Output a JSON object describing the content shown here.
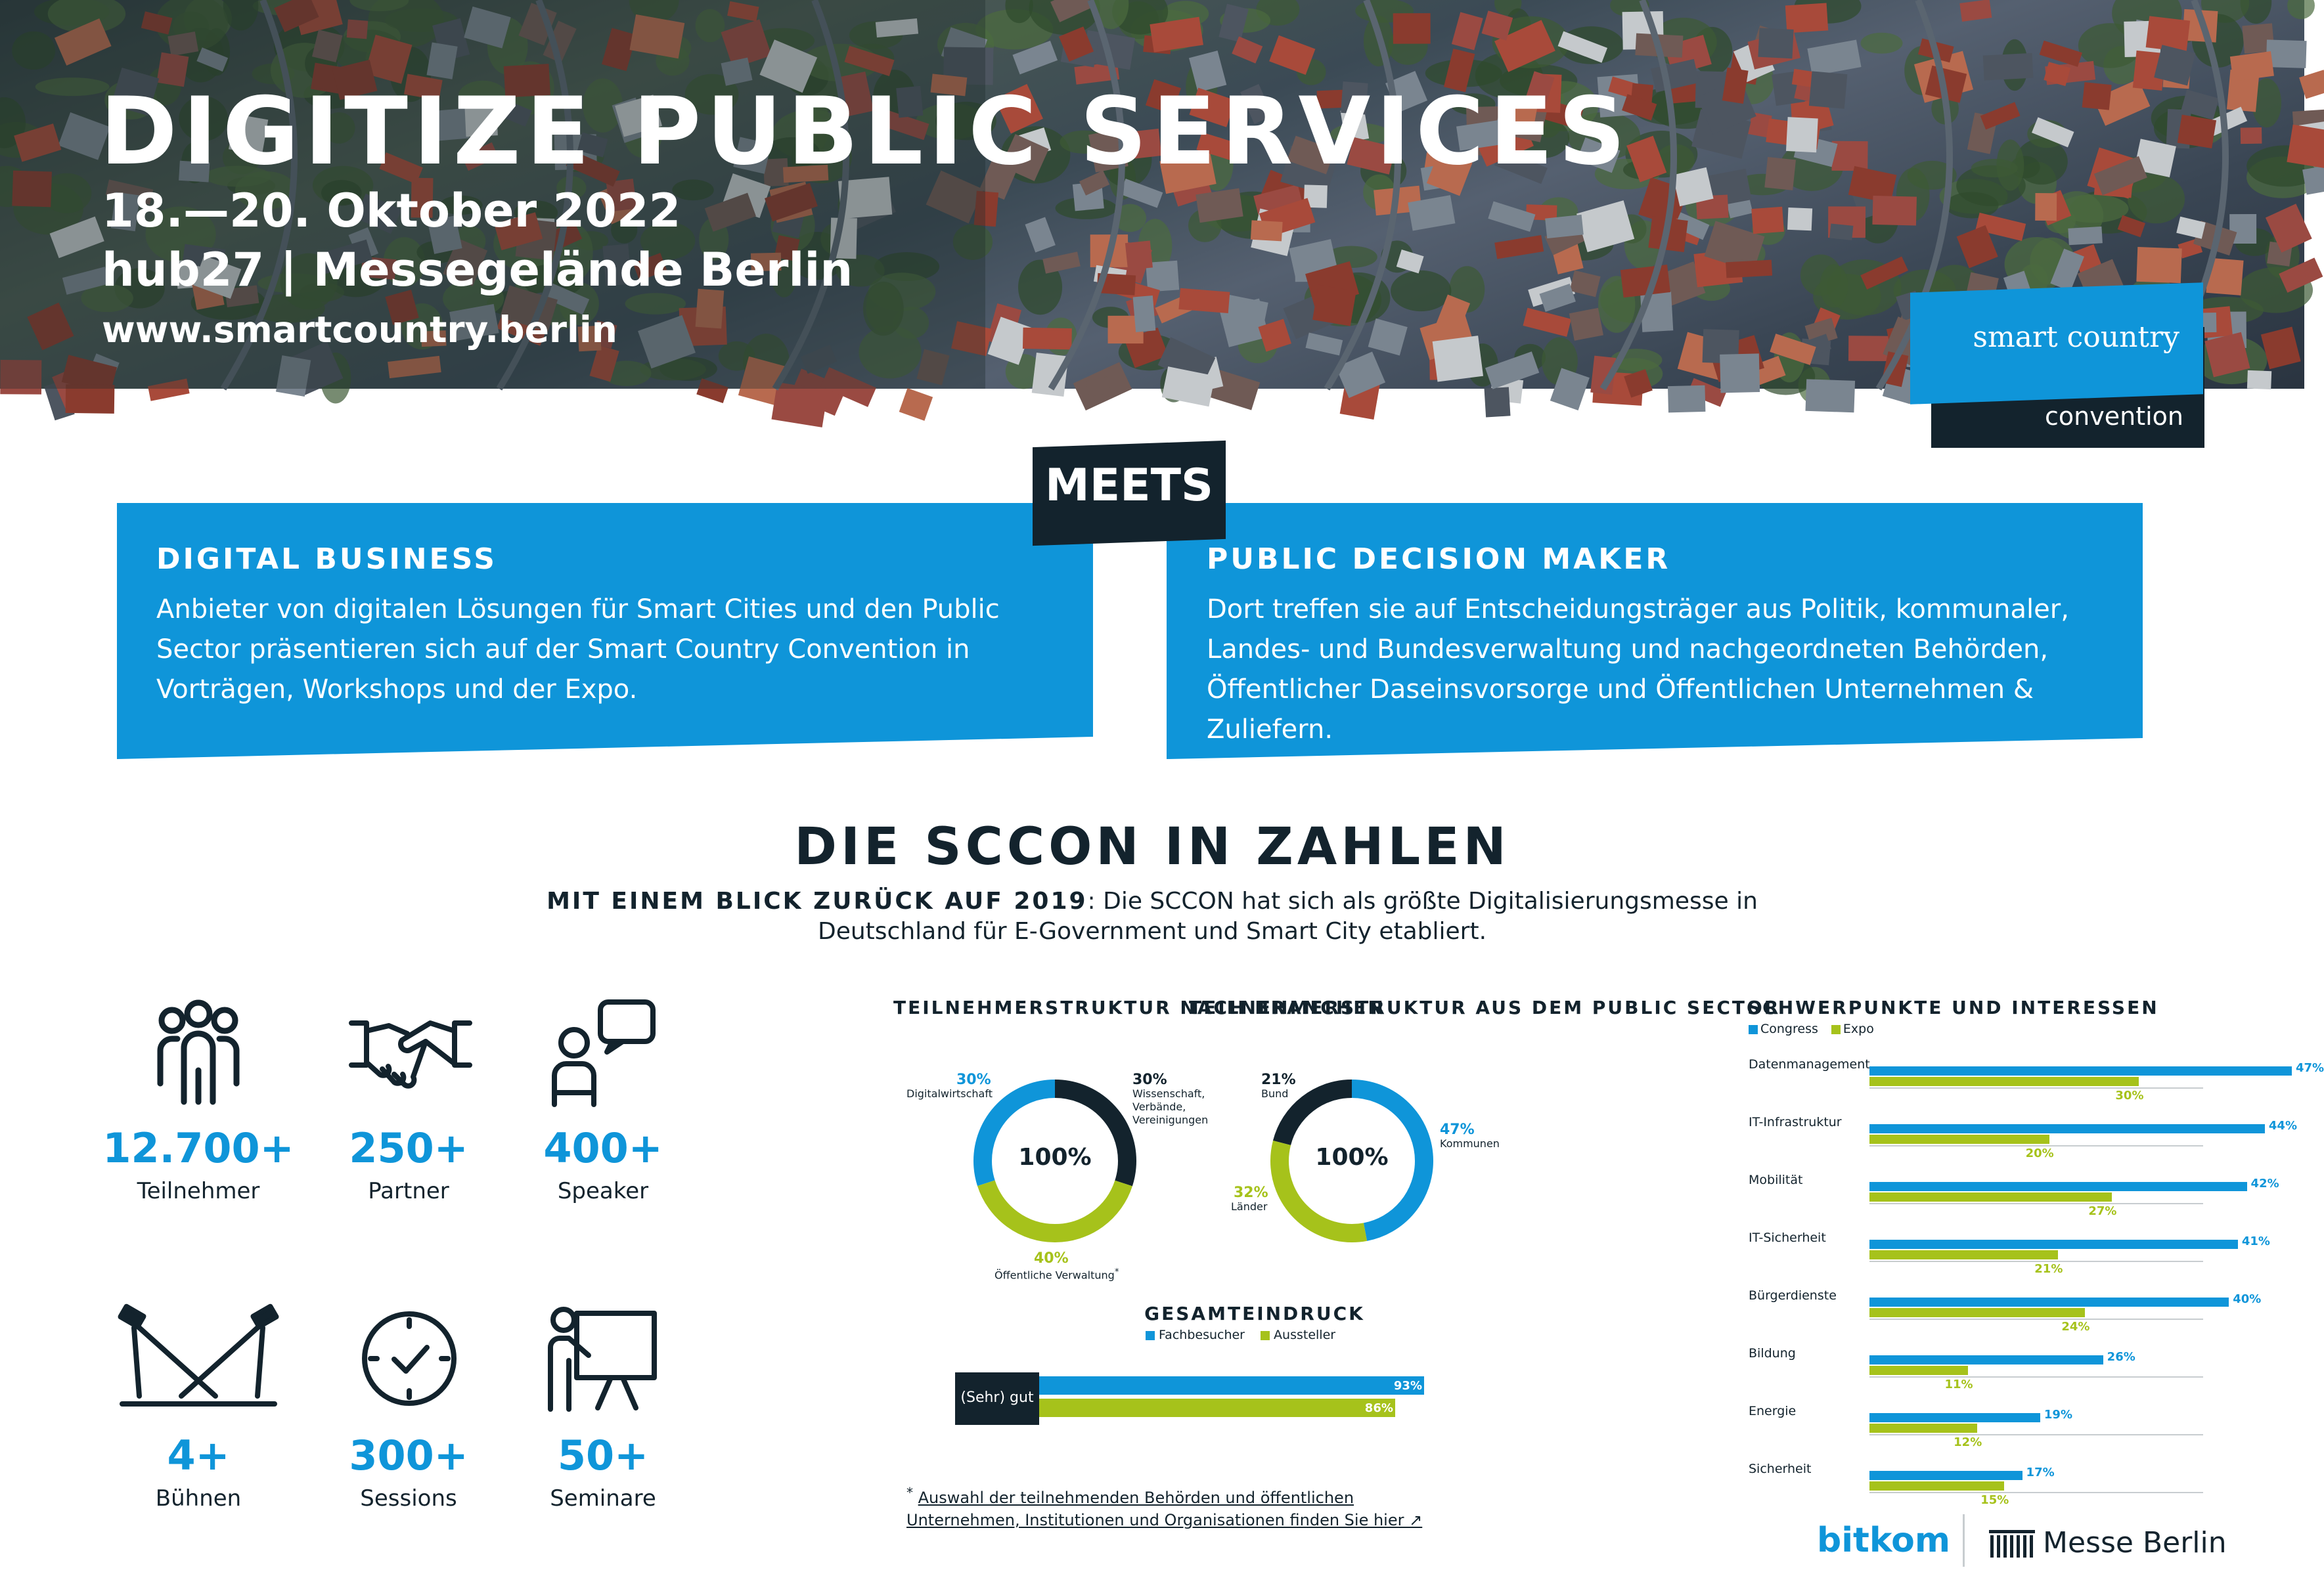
{
  "hero": {
    "title": "DIGITIZE PUBLIC SERVICES",
    "dates": "18.—20. Oktober 2022",
    "venue": "hub27 | Messegelände Berlin",
    "url": "www.smartcountry.berlin"
  },
  "logo": {
    "line1": "smart country",
    "line2": "convention"
  },
  "meets": {
    "label": "MEETS",
    "left": {
      "title": "DIGITAL BUSINESS",
      "text": "Anbieter von digitalen Lösungen für Smart Cities und den Public Sector präsentieren sich auf der Smart Country Convention in Vorträgen, Workshops und der Expo."
    },
    "right": {
      "title": "PUBLIC DECISION MAKER",
      "text": "Dort treffen sie auf Entscheidungsträger aus Politik, kommunaler, Landes- und Bundesverwaltung und nachgeordneten Behörden, Öffentlicher Daseinsvorsorge und Öffentlichen Unternehmen & Zuliefern."
    }
  },
  "section": {
    "title": "DIE SCCON IN ZAHLEN",
    "intro_bold": "MIT EINEM BLICK ZURÜCK AUF 2019",
    "intro_rest": ": Die SCCON hat sich als größte Digitalisierungsmesse in Deutschland für E-Government und Smart City etabliert."
  },
  "stats": [
    {
      "value": "12.700+",
      "label": "Teilnehmer",
      "icon": "people-icon"
    },
    {
      "value": "250+",
      "label": "Partner",
      "icon": "handshake-icon"
    },
    {
      "value": "400+",
      "label": "Speaker",
      "icon": "speaker-icon"
    },
    {
      "value": "4+",
      "label": "Bühnen",
      "icon": "stage-lights-icon"
    },
    {
      "value": "300+",
      "label": "Sessions",
      "icon": "clock-icon"
    },
    {
      "value": "50+",
      "label": "Seminare",
      "icon": "presentation-icon"
    }
  ],
  "colors": {
    "blue": "#0f95d9",
    "green": "#a6c21b",
    "dark": "#13232d",
    "gray_track": "#c8cdd0"
  },
  "chart_data": [
    {
      "type": "pie",
      "title": "TEILNEHMERSTRUKTUR NACH BRANCHEN",
      "center": "100%",
      "slices": [
        {
          "label": "Digitalwirtschaft",
          "value": 30,
          "pct": "30%",
          "color": "#0f95d9"
        },
        {
          "label": "Wissenschaft, Verbände, Vereinigungen",
          "value": 30,
          "pct": "30%",
          "color": "#13232d"
        },
        {
          "label": "Öffentliche Verwaltung",
          "value": 40,
          "pct": "40%",
          "color": "#a6c21b"
        }
      ]
    },
    {
      "type": "pie",
      "title": "TEILNEHMERSTRUKTUR AUS DEM PUBLIC SECTOR",
      "center": "100%",
      "slices": [
        {
          "label": "Bund",
          "value": 21,
          "pct": "21%",
          "color": "#13232d"
        },
        {
          "label": "Kommunen",
          "value": 47,
          "pct": "47%",
          "color": "#0f95d9"
        },
        {
          "label": "Länder",
          "value": 32,
          "pct": "32%",
          "color": "#a6c21b"
        }
      ]
    },
    {
      "type": "bar",
      "title": "GESAMTEINDRUCK",
      "categories": [
        "(Sehr) gut"
      ],
      "series": [
        {
          "name": "Fachbesucher",
          "values": [
            93
          ],
          "pct": "93%",
          "color": "#0f95d9"
        },
        {
          "name": "Aussteller",
          "values": [
            86
          ],
          "pct": "86%",
          "color": "#a6c21b"
        }
      ],
      "ylim": [
        0,
        100
      ]
    },
    {
      "type": "bar",
      "title": "SCHWERPUNKTE UND INTERESSEN",
      "categories": [
        "Datenmanagement",
        "IT-Infrastruktur",
        "Mobilität",
        "IT-Sicherheit",
        "Bürgerdienste",
        "Bildung",
        "Energie",
        "Sicherheit"
      ],
      "series": [
        {
          "name": "Congress",
          "values": [
            47,
            44,
            42,
            41,
            40,
            26,
            19,
            17
          ],
          "labels": [
            "47%",
            "44%",
            "42%",
            "41%",
            "40%",
            "26%",
            "19%",
            "17%"
          ],
          "color": "#0f95d9"
        },
        {
          "name": "Expo",
          "values": [
            30,
            20,
            27,
            21,
            24,
            11,
            12,
            15
          ],
          "labels": [
            "30%",
            "20%",
            "27%",
            "21%",
            "24%",
            "11%",
            "12%",
            "15%"
          ],
          "color": "#a6c21b"
        }
      ],
      "ylim": [
        0,
        50
      ]
    }
  ],
  "footnote": {
    "star": "*",
    "link_text": "Auswahl der teilnehmenden Behörden und öffentlichen Unternehmen, Institutionen und Organisationen finden Sie hier ↗"
  },
  "footer": {
    "bitkom": "bitkom",
    "messe": "Messe Berlin"
  }
}
